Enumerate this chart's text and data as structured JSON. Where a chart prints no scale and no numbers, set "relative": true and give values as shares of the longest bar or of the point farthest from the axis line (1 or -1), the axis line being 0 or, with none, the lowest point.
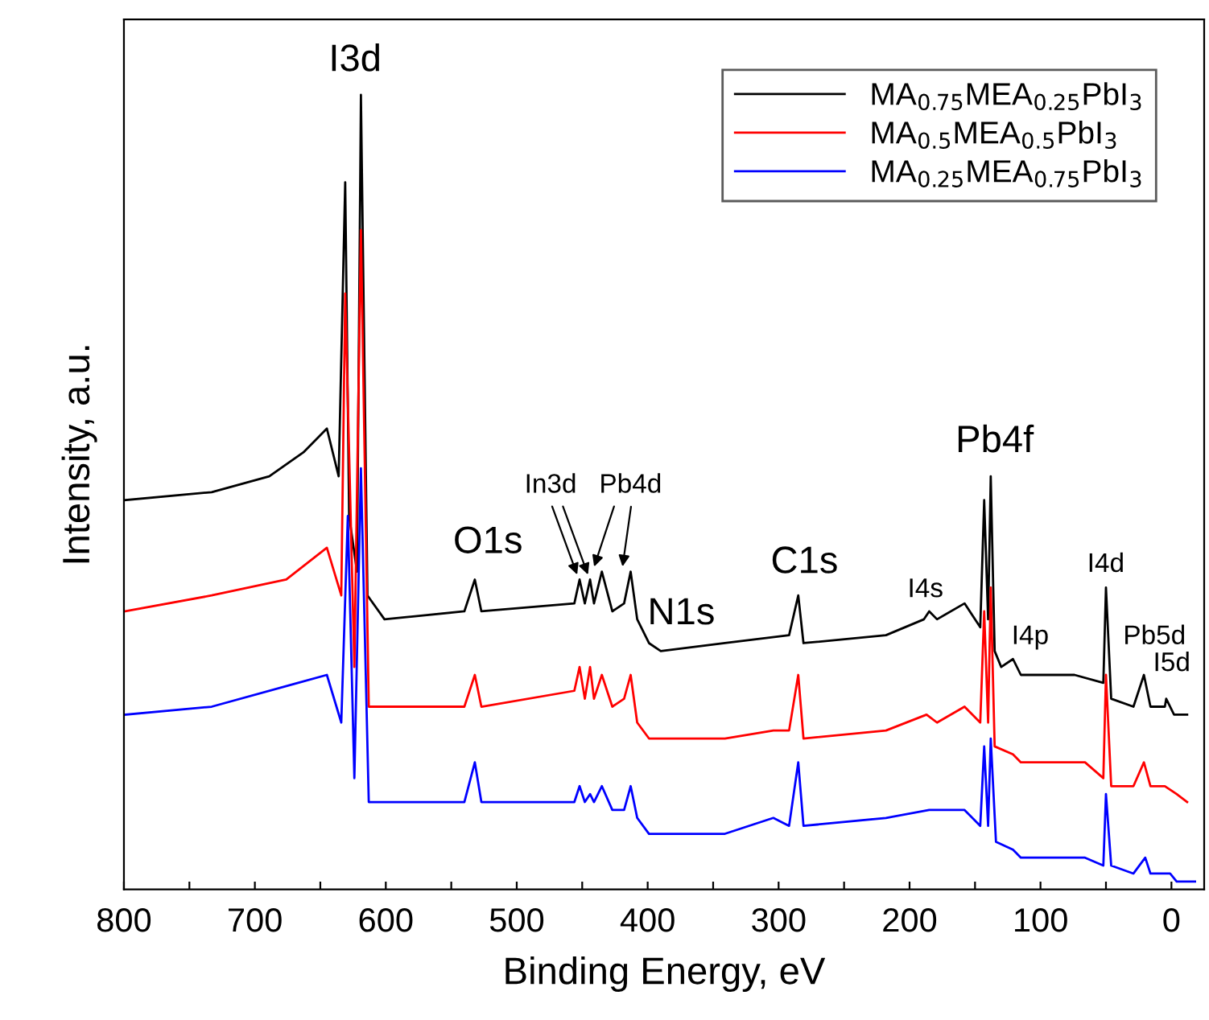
{
  "chart_data": {
    "type": "line",
    "relative": true,
    "xlabel": "Binding Energy, eV",
    "ylabel": "Intensity, a.u.",
    "xlim": [
      800,
      -25
    ],
    "xticks": [
      800,
      {
        "value": 750,
        "label": null
      },
      700,
      {
        "value": 650,
        "label": null
      },
      600,
      {
        "value": 550,
        "label": null
      },
      500,
      {
        "value": 450,
        "label": null
      },
      400,
      {
        "value": 350,
        "label": null
      },
      300,
      {
        "value": 250,
        "label": null
      },
      200,
      {
        "value": 150,
        "label": null
      },
      100,
      {
        "value": 50,
        "label": null
      },
      0
    ],
    "tick_labels": "x",
    "legend": "top right",
    "series": [
      {
        "name": "MA$_{0.75}$MEA$_{0.25}$PbI$_{3}$",
        "color": "#000000",
        "x": [
          799,
          733,
          689,
          663,
          645,
          636,
          631,
          628,
          622,
          619,
          614,
          601,
          540,
          532,
          527,
          456,
          452,
          448,
          444,
          441,
          435,
          427,
          418,
          413,
          408,
          399,
          390,
          341,
          292,
          285,
          281,
          218,
          189,
          185,
          179,
          158,
          146,
          143,
          140,
          138,
          135,
          130,
          121,
          115,
          74,
          52,
          50,
          46,
          29,
          21,
          16,
          5,
          4,
          -2,
          -12
        ],
        "values": [
          0.49,
          0.5,
          0.52,
          0.55,
          0.58,
          0.52,
          0.89,
          0.47,
          0.4,
          1.0,
          0.37,
          0.34,
          0.35,
          0.39,
          0.35,
          0.36,
          0.39,
          0.36,
          0.39,
          0.36,
          0.4,
          0.35,
          0.36,
          0.4,
          0.34,
          0.31,
          0.3,
          0.31,
          0.32,
          0.37,
          0.31,
          0.32,
          0.34,
          0.35,
          0.34,
          0.36,
          0.33,
          0.49,
          0.34,
          0.52,
          0.3,
          0.28,
          0.29,
          0.27,
          0.27,
          0.26,
          0.38,
          0.24,
          0.23,
          0.27,
          0.23,
          0.23,
          0.24,
          0.22,
          0.22
        ]
      },
      {
        "name": "MA$_{0.5}$MEA$_{0.5}$PbI$_{3}$",
        "color": "#ff0000",
        "x": [
          799,
          733,
          676,
          645,
          634,
          631,
          624,
          619,
          613,
          540,
          532,
          527,
          456,
          452,
          448,
          444,
          441,
          435,
          427,
          418,
          413,
          408,
          399,
          390,
          341,
          304,
          292,
          285,
          281,
          218,
          187,
          179,
          158,
          146,
          143,
          140,
          138,
          135,
          121,
          115,
          66,
          52,
          50,
          46,
          29,
          21,
          16,
          5,
          -4,
          -12
        ],
        "values": [
          0.35,
          0.37,
          0.39,
          0.43,
          0.37,
          0.75,
          0.28,
          0.83,
          0.23,
          0.23,
          0.27,
          0.23,
          0.25,
          0.28,
          0.24,
          0.28,
          0.24,
          0.27,
          0.23,
          0.24,
          0.27,
          0.21,
          0.19,
          0.19,
          0.19,
          0.2,
          0.2,
          0.27,
          0.19,
          0.2,
          0.22,
          0.21,
          0.23,
          0.21,
          0.35,
          0.21,
          0.38,
          0.18,
          0.17,
          0.16,
          0.16,
          0.14,
          0.27,
          0.13,
          0.13,
          0.16,
          0.13,
          0.13,
          0.12,
          0.11
        ]
      },
      {
        "name": "MA$_{0.25}$MEA$_{0.75}$PbI$_{3}$",
        "color": "#0000ff",
        "x": [
          799,
          733,
          667,
          645,
          634,
          629,
          624,
          619,
          613,
          540,
          532,
          527,
          456,
          452,
          448,
          444,
          441,
          435,
          427,
          418,
          413,
          408,
          399,
          390,
          341,
          304,
          292,
          285,
          281,
          218,
          185,
          179,
          158,
          146,
          143,
          140,
          138,
          134,
          121,
          115,
          66,
          52,
          50,
          46,
          29,
          20,
          16,
          1,
          -4,
          -18
        ],
        "values": [
          0.22,
          0.23,
          0.26,
          0.27,
          0.21,
          0.47,
          0.14,
          0.53,
          0.11,
          0.11,
          0.16,
          0.11,
          0.11,
          0.13,
          0.11,
          0.12,
          0.11,
          0.13,
          0.1,
          0.1,
          0.13,
          0.09,
          0.07,
          0.07,
          0.07,
          0.09,
          0.08,
          0.16,
          0.08,
          0.09,
          0.1,
          0.1,
          0.1,
          0.08,
          0.18,
          0.08,
          0.19,
          0.06,
          0.05,
          0.04,
          0.04,
          0.03,
          0.12,
          0.03,
          0.02,
          0.04,
          0.02,
          0.02,
          0.01,
          0.01
        ]
      }
    ],
    "annotations": [
      "I3d",
      "O1s",
      "In3d",
      "Pb4d",
      "N1s",
      "C1s",
      "I4s",
      "Pb4f",
      "I4p",
      "I4d",
      "Pb5d",
      "I5d"
    ]
  }
}
